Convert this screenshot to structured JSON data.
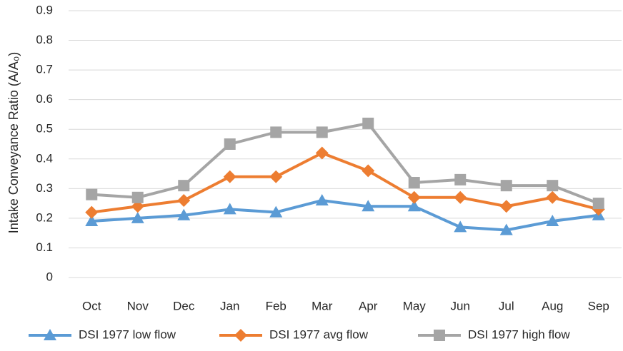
{
  "chart_data": {
    "type": "line",
    "y_label": "Intake Conveyance Ratio (A/A₀)",
    "categories": [
      "Oct",
      "Nov",
      "Dec",
      "Jan",
      "Feb",
      "Mar",
      "Apr",
      "May",
      "Jun",
      "Jul",
      "Aug",
      "Sep"
    ],
    "series": [
      {
        "name": "DSI 1977 low flow",
        "color": "#5b9bd5",
        "marker": "triangle",
        "values": [
          0.19,
          0.2,
          0.21,
          0.23,
          0.22,
          0.26,
          0.24,
          0.24,
          0.17,
          0.16,
          0.19,
          0.21
        ]
      },
      {
        "name": "DSI 1977 avg flow",
        "color": "#ed7d31",
        "marker": "diamond",
        "values": [
          0.22,
          0.24,
          0.26,
          0.34,
          0.34,
          0.42,
          0.36,
          0.27,
          0.27,
          0.24,
          0.27,
          0.23
        ]
      },
      {
        "name": "DSI 1977 high flow",
        "color": "#a5a5a5",
        "marker": "square",
        "values": [
          0.28,
          0.27,
          0.31,
          0.45,
          0.49,
          0.49,
          0.52,
          0.32,
          0.33,
          0.31,
          0.31,
          0.25
        ]
      }
    ],
    "ylim": [
      0,
      0.9
    ],
    "yticks": [
      0,
      0.1,
      0.2,
      0.3,
      0.4,
      0.5,
      0.6,
      0.7,
      0.8,
      0.9
    ],
    "grid": true,
    "legend": "bottom"
  }
}
